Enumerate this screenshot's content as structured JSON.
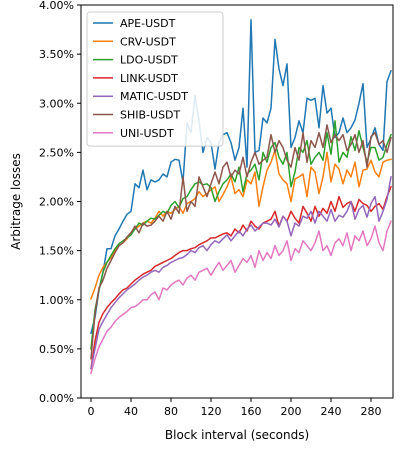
{
  "chart_data": {
    "type": "line",
    "title": "",
    "xlabel": "Block interval (seconds)",
    "ylabel": "Arbitrage losses",
    "xlim": [
      -10,
      302
    ],
    "ylim": [
      0,
      0.04
    ],
    "x_ticks": [
      0,
      40,
      80,
      120,
      160,
      200,
      240,
      280
    ],
    "y_ticks": [
      0,
      0.005,
      0.01,
      0.015,
      0.02,
      0.025,
      0.03,
      0.035,
      0.04
    ],
    "y_tick_labels": [
      "0.00%",
      "0.50%",
      "1.00%",
      "1.50%",
      "2.00%",
      "2.50%",
      "3.00%",
      "3.50%",
      "4.00%"
    ],
    "legend_position": "upper-left",
    "grid": false,
    "x": [
      0,
      4,
      8,
      12,
      16,
      20,
      24,
      28,
      32,
      36,
      40,
      44,
      48,
      52,
      56,
      60,
      64,
      68,
      72,
      76,
      80,
      84,
      88,
      92,
      96,
      100,
      104,
      108,
      112,
      116,
      120,
      124,
      128,
      132,
      136,
      140,
      144,
      148,
      152,
      156,
      160,
      164,
      168,
      172,
      176,
      180,
      184,
      188,
      192,
      196,
      200,
      204,
      208,
      212,
      216,
      220,
      224,
      228,
      232,
      236,
      240,
      244,
      248,
      252,
      256,
      260,
      264,
      268,
      272,
      276,
      280,
      284,
      288,
      292,
      296,
      300
    ],
    "series": [
      {
        "name": "APE-USDT",
        "color": "#1f77b4",
        "values": [
          0.0066,
          0.0082,
          0.011,
          0.0128,
          0.0152,
          0.0152,
          0.0165,
          0.0172,
          0.018,
          0.0187,
          0.019,
          0.0218,
          0.0214,
          0.0232,
          0.0212,
          0.0222,
          0.022,
          0.0222,
          0.0228,
          0.0225,
          0.024,
          0.0243,
          0.0242,
          0.022,
          0.028,
          0.027,
          0.0308,
          0.0282,
          0.025,
          0.0265,
          0.026,
          0.0233,
          0.026,
          0.0268,
          0.027,
          0.026,
          0.0242,
          0.0255,
          0.0295,
          0.0235,
          0.0385,
          0.025,
          0.0252,
          0.0285,
          0.028,
          0.0295,
          0.0365,
          0.0335,
          0.0318,
          0.034,
          0.0255,
          0.0265,
          0.0282,
          0.027,
          0.0305,
          0.0303,
          0.0305,
          0.0275,
          0.0318,
          0.029,
          0.0295,
          0.0265,
          0.027,
          0.0285,
          0.027,
          0.0275,
          0.0283,
          0.03,
          0.032,
          0.0255,
          0.0264,
          0.0275,
          0.0258,
          0.0252,
          0.0322,
          0.0333
        ]
      },
      {
        "name": "CRV-USDT",
        "color": "#ff7f0e",
        "values": [
          0.0101,
          0.0112,
          0.0125,
          0.0133,
          0.0138,
          0.0143,
          0.015,
          0.0155,
          0.0158,
          0.0162,
          0.0168,
          0.0172,
          0.0175,
          0.0178,
          0.018,
          0.0178,
          0.0183,
          0.019,
          0.0185,
          0.019,
          0.0188,
          0.0192,
          0.0195,
          0.0188,
          0.0198,
          0.02,
          0.0203,
          0.021,
          0.0205,
          0.0208,
          0.0212,
          0.0215,
          0.02,
          0.0207,
          0.0215,
          0.0225,
          0.0208,
          0.0212,
          0.0205,
          0.0222,
          0.0218,
          0.023,
          0.0195,
          0.0215,
          0.0232,
          0.024,
          0.0252,
          0.0228,
          0.0222,
          0.0218,
          0.02,
          0.0223,
          0.0225,
          0.0228,
          0.0205,
          0.0235,
          0.023,
          0.0208,
          0.0225,
          0.025,
          0.022,
          0.0238,
          0.0233,
          0.0218,
          0.0232,
          0.0225,
          0.024,
          0.0215,
          0.0232,
          0.0233,
          0.0242,
          0.023,
          0.0225,
          0.024,
          0.0242,
          0.0243
        ]
      },
      {
        "name": "LDO-USDT",
        "color": "#2ca02c",
        "values": [
          0.005,
          0.009,
          0.011,
          0.0128,
          0.0138,
          0.0145,
          0.0152,
          0.0157,
          0.016,
          0.0163,
          0.0166,
          0.0172,
          0.0178,
          0.0176,
          0.018,
          0.0183,
          0.0182,
          0.0186,
          0.019,
          0.0188,
          0.0196,
          0.02,
          0.0194,
          0.0203,
          0.0205,
          0.0212,
          0.0218,
          0.022,
          0.0217,
          0.0218,
          0.0214,
          0.02,
          0.021,
          0.0218,
          0.0222,
          0.0228,
          0.022,
          0.0235,
          0.021,
          0.0228,
          0.0232,
          0.0238,
          0.0222,
          0.025,
          0.024,
          0.0255,
          0.026,
          0.0245,
          0.0238,
          0.025,
          0.0215,
          0.023,
          0.0255,
          0.025,
          0.0262,
          0.0238,
          0.0245,
          0.025,
          0.0242,
          0.027,
          0.0248,
          0.0282,
          0.024,
          0.025,
          0.0245,
          0.0266,
          0.0252,
          0.0272,
          0.0255,
          0.024,
          0.0255,
          0.0255,
          0.0242,
          0.0245,
          0.0258,
          0.0268
        ]
      },
      {
        "name": "LINK-USDT",
        "color": "#d62728",
        "values": [
          0.003,
          0.0058,
          0.0077,
          0.0086,
          0.0092,
          0.0097,
          0.0101,
          0.0106,
          0.011,
          0.0112,
          0.0116,
          0.012,
          0.0123,
          0.0126,
          0.0128,
          0.013,
          0.0134,
          0.0136,
          0.0138,
          0.014,
          0.0142,
          0.0145,
          0.0148,
          0.015,
          0.015,
          0.0152,
          0.0153,
          0.0156,
          0.0158,
          0.016,
          0.0163,
          0.0163,
          0.0165,
          0.0167,
          0.0168,
          0.0165,
          0.0172,
          0.0168,
          0.0176,
          0.017,
          0.018,
          0.0175,
          0.0172,
          0.0178,
          0.018,
          0.0182,
          0.019,
          0.0175,
          0.0185,
          0.018,
          0.019,
          0.0183,
          0.0178,
          0.0195,
          0.0188,
          0.018,
          0.0195,
          0.0185,
          0.0193,
          0.0188,
          0.02,
          0.019,
          0.0205,
          0.0194,
          0.0198,
          0.02,
          0.019,
          0.0202,
          0.0198,
          0.0196,
          0.019,
          0.0195,
          0.0198,
          0.0192,
          0.0205,
          0.0215
        ]
      },
      {
        "name": "MATIC-USDT",
        "color": "#9467bd",
        "values": [
          0.003,
          0.005,
          0.007,
          0.0078,
          0.0085,
          0.0092,
          0.0097,
          0.0102,
          0.0106,
          0.011,
          0.0113,
          0.0116,
          0.012,
          0.0123,
          0.0125,
          0.0128,
          0.013,
          0.0128,
          0.0133,
          0.0135,
          0.0138,
          0.014,
          0.0142,
          0.0143,
          0.0146,
          0.015,
          0.0148,
          0.0153,
          0.0155,
          0.015,
          0.0156,
          0.016,
          0.0158,
          0.0162,
          0.0166,
          0.016,
          0.0165,
          0.017,
          0.0165,
          0.0172,
          0.0176,
          0.017,
          0.0174,
          0.0178,
          0.0178,
          0.0176,
          0.0182,
          0.0174,
          0.0185,
          0.018,
          0.0165,
          0.0178,
          0.0175,
          0.0185,
          0.0183,
          0.019,
          0.0178,
          0.019,
          0.0185,
          0.018,
          0.0192,
          0.018,
          0.0186,
          0.0184,
          0.019,
          0.02,
          0.0182,
          0.0192,
          0.0196,
          0.0184,
          0.0198,
          0.0205,
          0.018,
          0.019,
          0.0202,
          0.0225
        ]
      },
      {
        "name": "SHIB-USDT",
        "color": "#8c564b",
        "values": [
          0.004,
          0.0086,
          0.0112,
          0.012,
          0.0132,
          0.014,
          0.0148,
          0.0155,
          0.0158,
          0.0164,
          0.0168,
          0.0175,
          0.0168,
          0.0178,
          0.0175,
          0.0176,
          0.018,
          0.0185,
          0.018,
          0.019,
          0.0182,
          0.0195,
          0.0188,
          0.0225,
          0.019,
          0.02,
          0.0195,
          0.0225,
          0.0215,
          0.0205,
          0.0218,
          0.023,
          0.0218,
          0.0235,
          0.024,
          0.0225,
          0.0232,
          0.0228,
          0.0245,
          0.0225,
          0.024,
          0.025,
          0.0238,
          0.0242,
          0.0245,
          0.0268,
          0.025,
          0.0262,
          0.0255,
          0.0242,
          0.0235,
          0.0255,
          0.0242,
          0.027,
          0.024,
          0.0262,
          0.0255,
          0.027,
          0.0255,
          0.0278,
          0.026,
          0.0268,
          0.0262,
          0.0268,
          0.0252,
          0.0258,
          0.0268,
          0.025,
          0.0262,
          0.0235,
          0.0266,
          0.027,
          0.0258,
          0.0262,
          0.025,
          0.0265
        ]
      },
      {
        "name": "UNI-USDT",
        "color": "#e377c2",
        "values": [
          0.0025,
          0.004,
          0.0052,
          0.006,
          0.0068,
          0.0072,
          0.0078,
          0.0082,
          0.0085,
          0.0088,
          0.0092,
          0.0093,
          0.0096,
          0.01,
          0.01,
          0.0105,
          0.0108,
          0.01,
          0.0112,
          0.011,
          0.0115,
          0.0118,
          0.012,
          0.0115,
          0.0122,
          0.0125,
          0.012,
          0.0128,
          0.013,
          0.0132,
          0.0125,
          0.0132,
          0.0138,
          0.013,
          0.0135,
          0.014,
          0.0128,
          0.0135,
          0.0142,
          0.0138,
          0.0145,
          0.0133,
          0.015,
          0.014,
          0.0148,
          0.0142,
          0.0155,
          0.0145,
          0.015,
          0.016,
          0.014,
          0.0152,
          0.0148,
          0.016,
          0.0155,
          0.015,
          0.0158,
          0.017,
          0.015,
          0.0155,
          0.0145,
          0.0158,
          0.0162,
          0.0155,
          0.0168,
          0.015,
          0.0165,
          0.016,
          0.017,
          0.0155,
          0.0162,
          0.0175,
          0.0158,
          0.015,
          0.017,
          0.018
        ]
      }
    ]
  }
}
